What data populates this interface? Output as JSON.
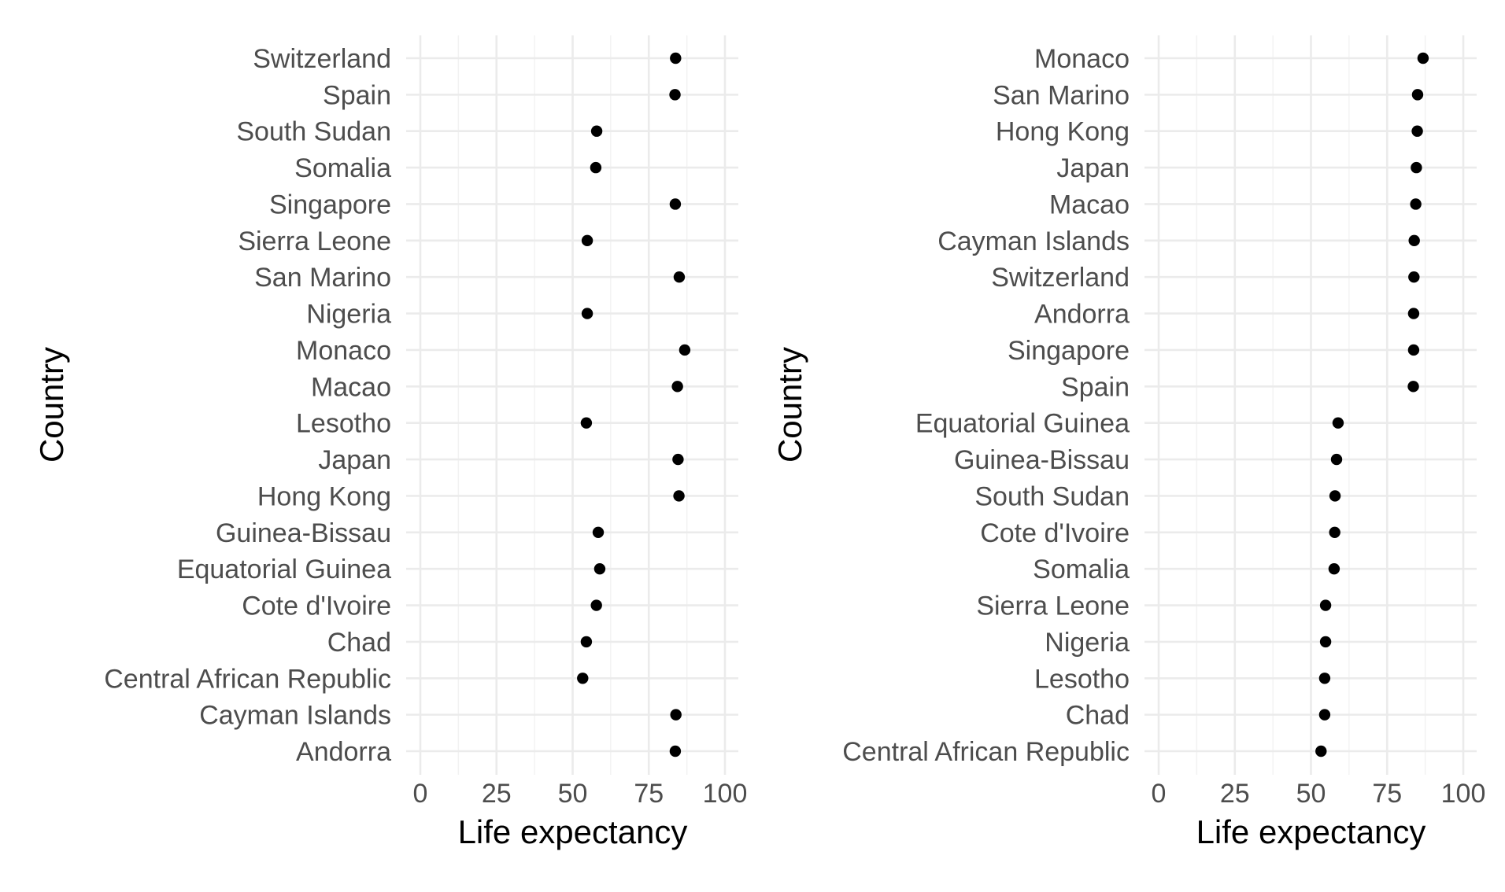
{
  "chart_data": [
    {
      "type": "scatter",
      "xlabel": "Life expectancy",
      "ylabel": "Country",
      "xlim": [
        0,
        100
      ],
      "x_ticks": [
        "0",
        "25",
        "50",
        "75",
        "100"
      ],
      "grid": true,
      "legend": "none",
      "points": [
        {
          "country": "Switzerland",
          "value": 83.8
        },
        {
          "country": "Spain",
          "value": 83.6
        },
        {
          "country": "South Sudan",
          "value": 57.9
        },
        {
          "country": "Somalia",
          "value": 57.6
        },
        {
          "country": "Singapore",
          "value": 83.7
        },
        {
          "country": "Sierra Leone",
          "value": 54.8
        },
        {
          "country": "San Marino",
          "value": 85.0
        },
        {
          "country": "Nigeria",
          "value": 54.8
        },
        {
          "country": "Monaco",
          "value": 86.8
        },
        {
          "country": "Macao",
          "value": 84.4
        },
        {
          "country": "Lesotho",
          "value": 54.5
        },
        {
          "country": "Japan",
          "value": 84.6
        },
        {
          "country": "Hong Kong",
          "value": 84.9
        },
        {
          "country": "Guinea-Bissau",
          "value": 58.4
        },
        {
          "country": "Equatorial Guinea",
          "value": 58.9
        },
        {
          "country": "Cote d'Ivoire",
          "value": 57.8
        },
        {
          "country": "Chad",
          "value": 54.5
        },
        {
          "country": "Central African Republic",
          "value": 53.3
        },
        {
          "country": "Cayman Islands",
          "value": 83.9
        },
        {
          "country": "Andorra",
          "value": 83.7
        }
      ]
    },
    {
      "type": "scatter",
      "xlabel": "Life expectancy",
      "ylabel": "Country",
      "xlim": [
        0,
        100
      ],
      "x_ticks": [
        "0",
        "25",
        "50",
        "75",
        "100"
      ],
      "grid": true,
      "legend": "none",
      "points": [
        {
          "country": "Monaco",
          "value": 86.8
        },
        {
          "country": "San Marino",
          "value": 85.0
        },
        {
          "country": "Hong Kong",
          "value": 84.9
        },
        {
          "country": "Japan",
          "value": 84.6
        },
        {
          "country": "Macao",
          "value": 84.4
        },
        {
          "country": "Cayman Islands",
          "value": 83.9
        },
        {
          "country": "Switzerland",
          "value": 83.8
        },
        {
          "country": "Andorra",
          "value": 83.7
        },
        {
          "country": "Singapore",
          "value": 83.7
        },
        {
          "country": "Spain",
          "value": 83.6
        },
        {
          "country": "Equatorial Guinea",
          "value": 58.9
        },
        {
          "country": "Guinea-Bissau",
          "value": 58.4
        },
        {
          "country": "South Sudan",
          "value": 57.9
        },
        {
          "country": "Cote d'Ivoire",
          "value": 57.8
        },
        {
          "country": "Somalia",
          "value": 57.6
        },
        {
          "country": "Sierra Leone",
          "value": 54.8
        },
        {
          "country": "Nigeria",
          "value": 54.8
        },
        {
          "country": "Lesotho",
          "value": 54.5
        },
        {
          "country": "Chad",
          "value": 54.5
        },
        {
          "country": "Central African Republic",
          "value": 53.3
        }
      ]
    }
  ]
}
